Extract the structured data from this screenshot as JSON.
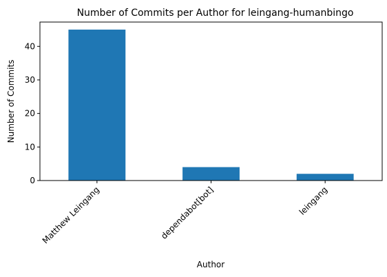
{
  "chart_data": {
    "type": "bar",
    "title": "Number of Commits per Author for leingang-humanbingo",
    "xlabel": "Author",
    "ylabel": "Number of Commits",
    "categories": [
      "Matthew Leingang",
      "dependabot[bot]",
      "leingang"
    ],
    "values": [
      45,
      4,
      2
    ],
    "ylim": [
      0,
      47.25
    ],
    "yticks": [
      0,
      10,
      20,
      30,
      40
    ],
    "bar_color": "#1f77b4",
    "grid": false,
    "legend": "none"
  }
}
